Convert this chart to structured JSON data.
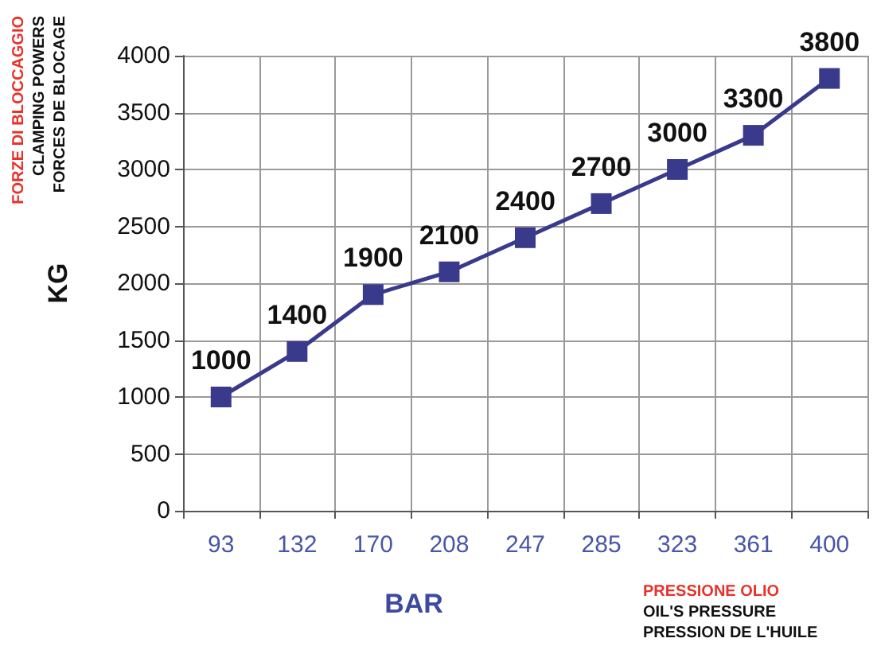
{
  "chart_data": {
    "type": "line",
    "xlabel": "BAR",
    "ylabel": "KG",
    "categories": [
      "93",
      "132",
      "170",
      "208",
      "247",
      "285",
      "323",
      "361",
      "400"
    ],
    "series": [
      {
        "color": "#3a3a8c",
        "values": [
          1000,
          1400,
          1900,
          2100,
          2400,
          2700,
          3000,
          3300,
          3800
        ]
      }
    ],
    "ylim": [
      0,
      4000
    ],
    "yticks": [
      0,
      500,
      1000,
      1500,
      2000,
      2500,
      3000,
      3500,
      4000
    ],
    "grid": true,
    "marker": "square",
    "line_style": "solid",
    "data_labels": true,
    "annotations": [
      "FORZE DI BLOCCAGGIO",
      "CLAMPING POWERS",
      "FORCES DE BLOCAGE",
      "PRESSIONE OLIO",
      "OIL'S PRESSURE",
      "PRESSION DE L'HUILE"
    ]
  }
}
